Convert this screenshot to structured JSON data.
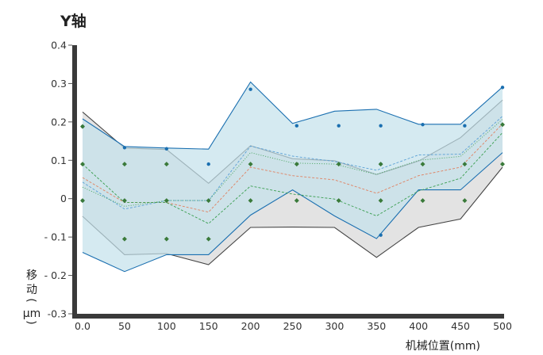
{
  "chart_data": {
    "type": "line",
    "title": "Y轴",
    "xlabel": "机械位置(mm)",
    "ylabel": [
      "移",
      "动",
      "(",
      "μm",
      ")"
    ],
    "xlim": [
      0,
      500
    ],
    "ylim": [
      -0.3,
      0.4
    ],
    "x_ticks": [
      "0.0",
      "50",
      "100",
      "150",
      "200",
      "250",
      "300",
      "350",
      "400",
      "450",
      "500"
    ],
    "y_ticks": [
      "0.4",
      "0.3",
      "0.2",
      "0.1",
      "0",
      "- 0.1",
      "- 0.2",
      "-0.3"
    ],
    "x": [
      0,
      50,
      100,
      150,
      200,
      250,
      300,
      350,
      400,
      450,
      500
    ],
    "bands": [
      {
        "upper": [
          0.226,
          0.132,
          0.128,
          0.04,
          0.138,
          0.104,
          0.099,
          0.063,
          0.098,
          0.159,
          0.257
        ],
        "lower": [
          -0.046,
          -0.146,
          -0.143,
          -0.172,
          -0.075,
          -0.074,
          -0.075,
          -0.153,
          -0.075,
          -0.053,
          0.082
        ],
        "fill": "#e3e3e3",
        "stroke": "#444444"
      },
      {
        "upper": [
          0.208,
          0.136,
          0.132,
          0.129,
          0.304,
          0.196,
          0.228,
          0.233,
          0.194,
          0.194,
          0.291
        ],
        "lower": [
          -0.14,
          -0.19,
          -0.146,
          -0.146,
          -0.043,
          0.023,
          -0.045,
          -0.104,
          0.023,
          0.023,
          0.12
        ],
        "fill": "#c3e1eb",
        "stroke": "#1a6fb0"
      }
    ],
    "series": [
      {
        "values": [
          0.043,
          -0.027,
          -0.005,
          -0.005,
          0.137,
          0.111,
          0.097,
          0.074,
          0.114,
          0.116,
          0.215
        ],
        "color": "#5aa0d5",
        "dash": "3,2"
      },
      {
        "values": [
          0.055,
          -0.01,
          -0.01,
          -0.035,
          0.082,
          0.06,
          0.049,
          0.014,
          0.06,
          0.082,
          0.195
        ],
        "color": "#e08060",
        "dash": "3,2"
      },
      {
        "values": [
          0.09,
          -0.01,
          -0.01,
          -0.065,
          0.033,
          0.012,
          -0.001,
          -0.045,
          0.02,
          0.053,
          0.172
        ],
        "color": "#3a9e50",
        "dash": "3,2"
      },
      {
        "values": [
          0.03,
          -0.02,
          -0.005,
          -0.005,
          0.12,
          0.093,
          0.09,
          0.063,
          0.1,
          0.11,
          0.207
        ],
        "color": "#3a9e50",
        "dash": "1,2"
      }
    ],
    "points": [
      {
        "color": "#1a6fb0",
        "shape": "circle",
        "xy": [
          [
            0,
            0.188
          ],
          [
            0,
            -0.005
          ],
          [
            50,
            0.133
          ],
          [
            100,
            0.13
          ],
          [
            150,
            0.09
          ],
          [
            200,
            0.285
          ],
          [
            255,
            0.19
          ],
          [
            305,
            0.19
          ],
          [
            355,
            0.19
          ],
          [
            405,
            0.193
          ],
          [
            455,
            0.19
          ],
          [
            500,
            0.29
          ],
          [
            355,
            0.09
          ],
          [
            355,
            -0.095
          ]
        ]
      },
      {
        "color": "#3a7a3a",
        "shape": "diamond",
        "xy": [
          [
            0,
            0.188
          ],
          [
            0,
            0.09
          ],
          [
            0,
            -0.005
          ],
          [
            50,
            0.09
          ],
          [
            50,
            -0.005
          ],
          [
            50,
            -0.105
          ],
          [
            100,
            0.09
          ],
          [
            100,
            -0.005
          ],
          [
            100,
            -0.105
          ],
          [
            150,
            -0.005
          ],
          [
            150,
            -0.105
          ],
          [
            200,
            0.09
          ],
          [
            200,
            -0.005
          ],
          [
            255,
            0.09
          ],
          [
            255,
            -0.005
          ],
          [
            305,
            0.09
          ],
          [
            305,
            -0.005
          ],
          [
            355,
            0.09
          ],
          [
            355,
            -0.005
          ],
          [
            405,
            0.09
          ],
          [
            405,
            -0.005
          ],
          [
            455,
            0.09
          ],
          [
            455,
            -0.005
          ],
          [
            500,
            0.193
          ],
          [
            500,
            0.09
          ]
        ]
      }
    ],
    "grid": false,
    "legend": "none"
  }
}
